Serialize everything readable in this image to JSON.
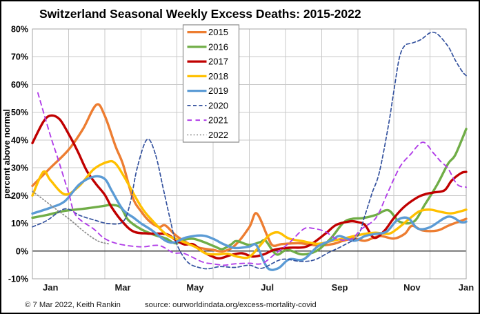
{
  "chart_data": {
    "type": "line",
    "title": "Switzerland Seasonal Weekly Excess Deaths: 2015-2022",
    "ylabel": "percent above normal",
    "ylim": [
      -10,
      80
    ],
    "y_tick_step": 10,
    "y_tick_suffix": "%",
    "x_range_months": [
      0,
      12
    ],
    "x_ticks": [
      {
        "label": "Jan",
        "m": 0.5
      },
      {
        "label": "Mar",
        "m": 2.5
      },
      {
        "label": "May",
        "m": 4.5
      },
      {
        "label": "Jul",
        "m": 6.5
      },
      {
        "label": "Sep",
        "m": 8.5
      },
      {
        "label": "Nov",
        "m": 10.5
      },
      {
        "label": "Jan",
        "m": 12
      }
    ],
    "grid": true,
    "legend_position": "upper-left-inside",
    "colors": {
      "grid": "#c9c9c9",
      "zero_line": "#3c3c3c",
      "plot_border": "#a6a6a6",
      "outer_border": "#000000",
      "legend_border": "#8a8a8a",
      "background": "#ffffff"
    },
    "series": [
      {
        "name": "2015",
        "color": "#ED7D31",
        "style": "solid",
        "width": 3.4,
        "points": [
          [
            0,
            23.5
          ],
          [
            0.5,
            30
          ],
          [
            1,
            36.5
          ],
          [
            1.4,
            44
          ],
          [
            1.77,
            52.7
          ],
          [
            2,
            48.8
          ],
          [
            2.3,
            37.7
          ],
          [
            2.5,
            31.5
          ],
          [
            2.77,
            19.4
          ],
          [
            3,
            14.4
          ],
          [
            3.24,
            10.7
          ],
          [
            3.5,
            8.7
          ],
          [
            3.68,
            9.2
          ],
          [
            4,
            5.3
          ],
          [
            4.5,
            1.6
          ],
          [
            5,
            0.4
          ],
          [
            5.27,
            -0.1
          ],
          [
            5.6,
            2
          ],
          [
            6,
            8.6
          ],
          [
            6.2,
            13.6
          ],
          [
            6.5,
            5.4
          ],
          [
            6.65,
            2
          ],
          [
            6.9,
            2.5
          ],
          [
            7.4,
            2.8
          ],
          [
            7.9,
            2
          ],
          [
            8.3,
            2.5
          ],
          [
            8.6,
            3.7
          ],
          [
            8.9,
            4.5
          ],
          [
            9.2,
            3.7
          ],
          [
            9.6,
            5.4
          ],
          [
            10,
            4.5
          ],
          [
            10.3,
            6.2
          ],
          [
            10.5,
            9.1
          ],
          [
            10.8,
            7.4
          ],
          [
            11.2,
            7.4
          ],
          [
            11.5,
            9.1
          ],
          [
            11.8,
            10.6
          ],
          [
            12,
            11.6
          ]
        ]
      },
      {
        "name": "2016",
        "color": "#70AD47",
        "style": "solid",
        "width": 3.4,
        "points": [
          [
            0,
            12
          ],
          [
            0.4,
            13
          ],
          [
            0.9,
            14.5
          ],
          [
            1.4,
            15.2
          ],
          [
            1.9,
            16.1
          ],
          [
            2.2,
            16.6
          ],
          [
            2.45,
            15.6
          ],
          [
            2.65,
            11.2
          ],
          [
            3,
            7.9
          ],
          [
            3.4,
            5.7
          ],
          [
            3.7,
            4.5
          ],
          [
            3.95,
            2.8
          ],
          [
            4.2,
            4.1
          ],
          [
            4.45,
            4.4
          ],
          [
            4.75,
            3.2
          ],
          [
            5.05,
            1.6
          ],
          [
            5.25,
            0.7
          ],
          [
            5.5,
            2.4
          ],
          [
            5.65,
            3.6
          ],
          [
            6,
            2.2
          ],
          [
            6.3,
            3.2
          ],
          [
            6.45,
            3.7
          ],
          [
            6.75,
            -1.2
          ],
          [
            7.05,
            0.5
          ],
          [
            7.45,
            -1.2
          ],
          [
            7.85,
            0
          ],
          [
            8.25,
            4.5
          ],
          [
            8.6,
            10.2
          ],
          [
            8.85,
            11.6
          ],
          [
            9.15,
            11.9
          ],
          [
            9.5,
            13
          ],
          [
            9.85,
            14.7
          ],
          [
            10.15,
            10.6
          ],
          [
            10.55,
            10.6
          ],
          [
            10.85,
            16.6
          ],
          [
            11.2,
            24
          ],
          [
            11.5,
            31.5
          ],
          [
            11.7,
            34.7
          ],
          [
            12,
            44
          ]
        ]
      },
      {
        "name": "2017",
        "color": "#C00000",
        "style": "solid",
        "width": 3.4,
        "points": [
          [
            0,
            38.9
          ],
          [
            0.3,
            46.5
          ],
          [
            0.5,
            48.8
          ],
          [
            0.75,
            47.5
          ],
          [
            1,
            42.2
          ],
          [
            1.25,
            36
          ],
          [
            1.5,
            29
          ],
          [
            1.75,
            24.3
          ],
          [
            2,
            20.3
          ],
          [
            2.2,
            15.6
          ],
          [
            2.5,
            10.4
          ],
          [
            2.8,
            7
          ],
          [
            3.2,
            6.3
          ],
          [
            3.7,
            6.1
          ],
          [
            3.95,
            4.1
          ],
          [
            4.2,
            2.4
          ],
          [
            4.45,
            2.4
          ],
          [
            4.7,
            -0.1
          ],
          [
            5,
            -2.1
          ],
          [
            5.2,
            -2.6
          ],
          [
            5.5,
            -1.4
          ],
          [
            5.8,
            -0.8
          ],
          [
            6.1,
            -2
          ],
          [
            6.4,
            -1.2
          ],
          [
            6.7,
            0.5
          ],
          [
            7.1,
            1.2
          ],
          [
            7.6,
            1.7
          ],
          [
            8.1,
            6.2
          ],
          [
            8.4,
            9.4
          ],
          [
            8.8,
            10.7
          ],
          [
            9,
            10.4
          ],
          [
            9.2,
            9.4
          ],
          [
            9.45,
            4.8
          ],
          [
            9.73,
            7.2
          ],
          [
            10,
            11.9
          ],
          [
            10.3,
            16.1
          ],
          [
            10.66,
            19.4
          ],
          [
            10.9,
            20.6
          ],
          [
            11.1,
            21.1
          ],
          [
            11.4,
            21.9
          ],
          [
            11.6,
            25.4
          ],
          [
            11.86,
            28.1
          ],
          [
            12,
            28.5
          ]
        ]
      },
      {
        "name": "2018",
        "color": "#FFC000",
        "style": "solid",
        "width": 3.4,
        "points": [
          [
            0,
            20
          ],
          [
            0.3,
            28.5
          ],
          [
            0.5,
            25.5
          ],
          [
            0.9,
            20.4
          ],
          [
            1.3,
            23.5
          ],
          [
            1.7,
            29.5
          ],
          [
            2.1,
            32.2
          ],
          [
            2.3,
            31.5
          ],
          [
            2.55,
            26.5
          ],
          [
            3,
            16.1
          ],
          [
            3.3,
            11.2
          ],
          [
            3.7,
            6
          ],
          [
            4,
            4.2
          ],
          [
            4.5,
            1.5
          ],
          [
            4.8,
            -0.9
          ],
          [
            5.1,
            -1.2
          ],
          [
            5.4,
            -1
          ],
          [
            5.7,
            -2.1
          ],
          [
            6,
            -2.1
          ],
          [
            6.3,
            2
          ],
          [
            6.55,
            5.7
          ],
          [
            6.8,
            6.7
          ],
          [
            7.1,
            4.5
          ],
          [
            7.5,
            3.5
          ],
          [
            7.9,
            2.6
          ],
          [
            8.3,
            3.7
          ],
          [
            8.6,
            4.5
          ],
          [
            8.9,
            5.4
          ],
          [
            9.2,
            6.2
          ],
          [
            9.5,
            6.6
          ],
          [
            9.85,
            6.2
          ],
          [
            10.1,
            8.1
          ],
          [
            10.5,
            12.4
          ],
          [
            10.72,
            14.4
          ],
          [
            11,
            14.9
          ],
          [
            11.3,
            14.1
          ],
          [
            11.6,
            13.6
          ],
          [
            12,
            14.9
          ]
        ]
      },
      {
        "name": "2019",
        "color": "#5B9BD5",
        "style": "solid",
        "width": 3.4,
        "points": [
          [
            0,
            13.5
          ],
          [
            0.5,
            15.6
          ],
          [
            0.9,
            18
          ],
          [
            1.3,
            24
          ],
          [
            1.7,
            26.8
          ],
          [
            2,
            26
          ],
          [
            2.2,
            21.6
          ],
          [
            2.5,
            15
          ],
          [
            2.8,
            12
          ],
          [
            3,
            10
          ],
          [
            3.3,
            7.5
          ],
          [
            3.7,
            3.6
          ],
          [
            3.95,
            3.2
          ],
          [
            4.25,
            4.9
          ],
          [
            4.7,
            5.6
          ],
          [
            5,
            4.4
          ],
          [
            5.3,
            2.4
          ],
          [
            5.6,
            1.1
          ],
          [
            6,
            1.6
          ],
          [
            6.2,
            2
          ],
          [
            6.5,
            -6
          ],
          [
            6.8,
            -6.2
          ],
          [
            7.1,
            -3
          ],
          [
            7.5,
            -3
          ],
          [
            7.9,
            1.7
          ],
          [
            8.3,
            4
          ],
          [
            8.5,
            5.4
          ],
          [
            8.9,
            3.7
          ],
          [
            9.2,
            5.4
          ],
          [
            9.5,
            6.2
          ],
          [
            9.8,
            7
          ],
          [
            10.1,
            11.2
          ],
          [
            10.4,
            11.8
          ],
          [
            10.66,
            8.1
          ],
          [
            11,
            8.6
          ],
          [
            11.5,
            12.4
          ],
          [
            11.86,
            10.4
          ],
          [
            12,
            10.6
          ]
        ]
      },
      {
        "name": "2020",
        "color": "#33519E",
        "style": "dash",
        "width": 1.7,
        "points": [
          [
            0,
            8.7
          ],
          [
            0.4,
            11
          ],
          [
            0.9,
            15.2
          ],
          [
            1.3,
            12.9
          ],
          [
            1.7,
            11.2
          ],
          [
            2.1,
            9.9
          ],
          [
            2.5,
            10.5
          ],
          [
            2.7,
            17
          ],
          [
            2.9,
            30
          ],
          [
            3.17,
            40.2
          ],
          [
            3.4,
            35
          ],
          [
            3.62,
            22.5
          ],
          [
            3.8,
            12
          ],
          [
            3.95,
            4
          ],
          [
            4.15,
            -1.5
          ],
          [
            4.35,
            -4.6
          ],
          [
            4.6,
            -5.9
          ],
          [
            4.85,
            -6.4
          ],
          [
            5.2,
            -5.6
          ],
          [
            5.6,
            -5.9
          ],
          [
            6,
            -5.1
          ],
          [
            6.35,
            -6.2
          ],
          [
            6.9,
            -3
          ],
          [
            7.4,
            -3.7
          ],
          [
            7.8,
            -3.2
          ],
          [
            8.2,
            -0.5
          ],
          [
            8.6,
            2
          ],
          [
            9,
            5.5
          ],
          [
            9.2,
            12.9
          ],
          [
            9.4,
            21
          ],
          [
            9.6,
            28.5
          ],
          [
            9.85,
            45.4
          ],
          [
            10,
            57.8
          ],
          [
            10.15,
            69.5
          ],
          [
            10.3,
            74
          ],
          [
            10.5,
            74.9
          ],
          [
            10.75,
            76.2
          ],
          [
            11,
            78.6
          ],
          [
            11.2,
            78.2
          ],
          [
            11.5,
            73.7
          ],
          [
            11.7,
            68.7
          ],
          [
            11.9,
            64.5
          ],
          [
            12,
            63.2
          ]
        ]
      },
      {
        "name": "2021",
        "color": "#B13EE8",
        "style": "longdash",
        "width": 1.9,
        "points": [
          [
            0.15,
            57
          ],
          [
            0.5,
            41.5
          ],
          [
            0.7,
            33.5
          ],
          [
            1,
            21
          ],
          [
            1.2,
            12.9
          ],
          [
            1.7,
            7.9
          ],
          [
            2,
            4.5
          ],
          [
            2.4,
            2.5
          ],
          [
            3,
            1.5
          ],
          [
            3.5,
            2
          ],
          [
            3.9,
            -0.6
          ],
          [
            4.2,
            -0.9
          ],
          [
            4.7,
            -3.9
          ],
          [
            5,
            -4.6
          ],
          [
            5.3,
            -5.1
          ],
          [
            5.6,
            -4.6
          ],
          [
            6,
            -4.4
          ],
          [
            6.35,
            -4.5
          ],
          [
            6.7,
            -1.2
          ],
          [
            7.1,
            2.9
          ],
          [
            7.5,
            7.9
          ],
          [
            7.75,
            8.2
          ],
          [
            8.1,
            7
          ],
          [
            8.4,
            4.5
          ],
          [
            8.8,
            4.2
          ],
          [
            9.1,
            7.9
          ],
          [
            9.5,
            11.9
          ],
          [
            9.8,
            20.2
          ],
          [
            10,
            26
          ],
          [
            10.2,
            31
          ],
          [
            10.45,
            34.7
          ],
          [
            10.8,
            39.2
          ],
          [
            11.1,
            35.2
          ],
          [
            11.3,
            32.2
          ],
          [
            11.5,
            29.7
          ],
          [
            11.75,
            24
          ],
          [
            12,
            23
          ]
        ]
      },
      {
        "name": "2022",
        "color": "#8C8C8C",
        "style": "dot",
        "width": 1.7,
        "points": [
          [
            0,
            21.5
          ],
          [
            0.3,
            18.6
          ],
          [
            0.67,
            14.9
          ],
          [
            1.05,
            11.2
          ],
          [
            1.43,
            7
          ],
          [
            1.8,
            3.7
          ],
          [
            2.1,
            2.6
          ]
        ]
      }
    ]
  },
  "footer": {
    "copyright": "© 7 Mar 2022, Keith Rankin",
    "source": "source: ourworldindata.org/excess-mortality-covid"
  }
}
